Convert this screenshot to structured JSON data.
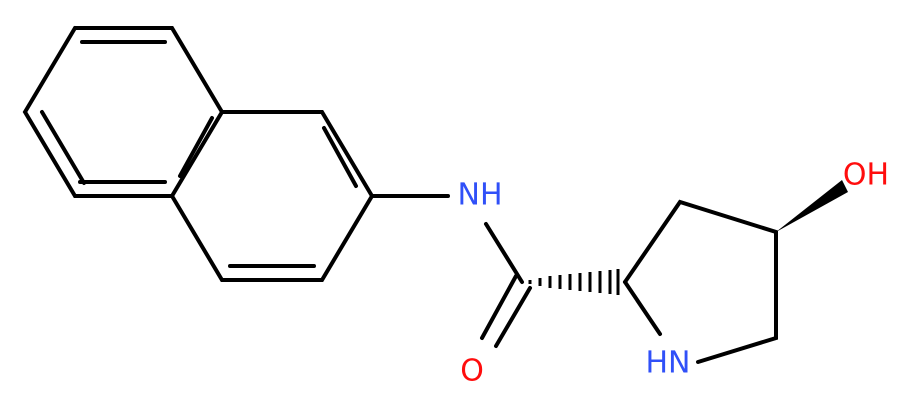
{
  "atoms": {
    "amide_nh": "NH",
    "carbonyl_o": "O",
    "hydroxyl": "OH",
    "ring_nh": "HN"
  }
}
